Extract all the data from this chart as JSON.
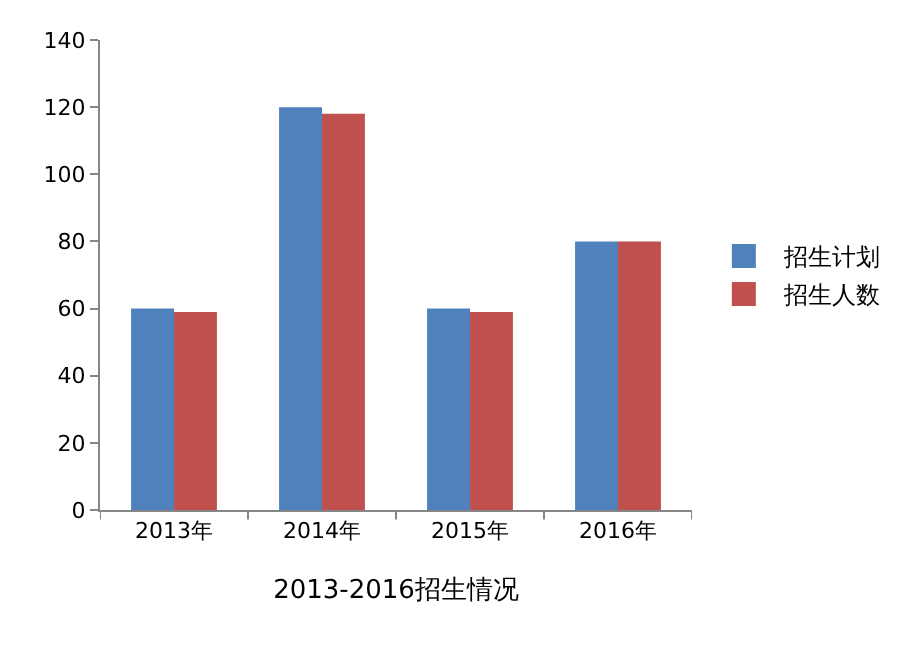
{
  "chart_data": {
    "type": "bar",
    "xlabel": "2013-2016招生情况",
    "categories": [
      "2013年",
      "2014年",
      "2015年",
      "2016年"
    ],
    "series": [
      {
        "name": "招生计划",
        "color": "#4f81bd",
        "values": [
          60,
          120,
          60,
          80
        ]
      },
      {
        "name": "招生人数",
        "color": "#c0504d",
        "values": [
          59,
          118,
          59,
          80
        ]
      }
    ],
    "ylim": [
      0,
      140
    ],
    "yticks": [
      0,
      20,
      40,
      60,
      80,
      100,
      120,
      140
    ],
    "grid": false,
    "legend": "right"
  }
}
